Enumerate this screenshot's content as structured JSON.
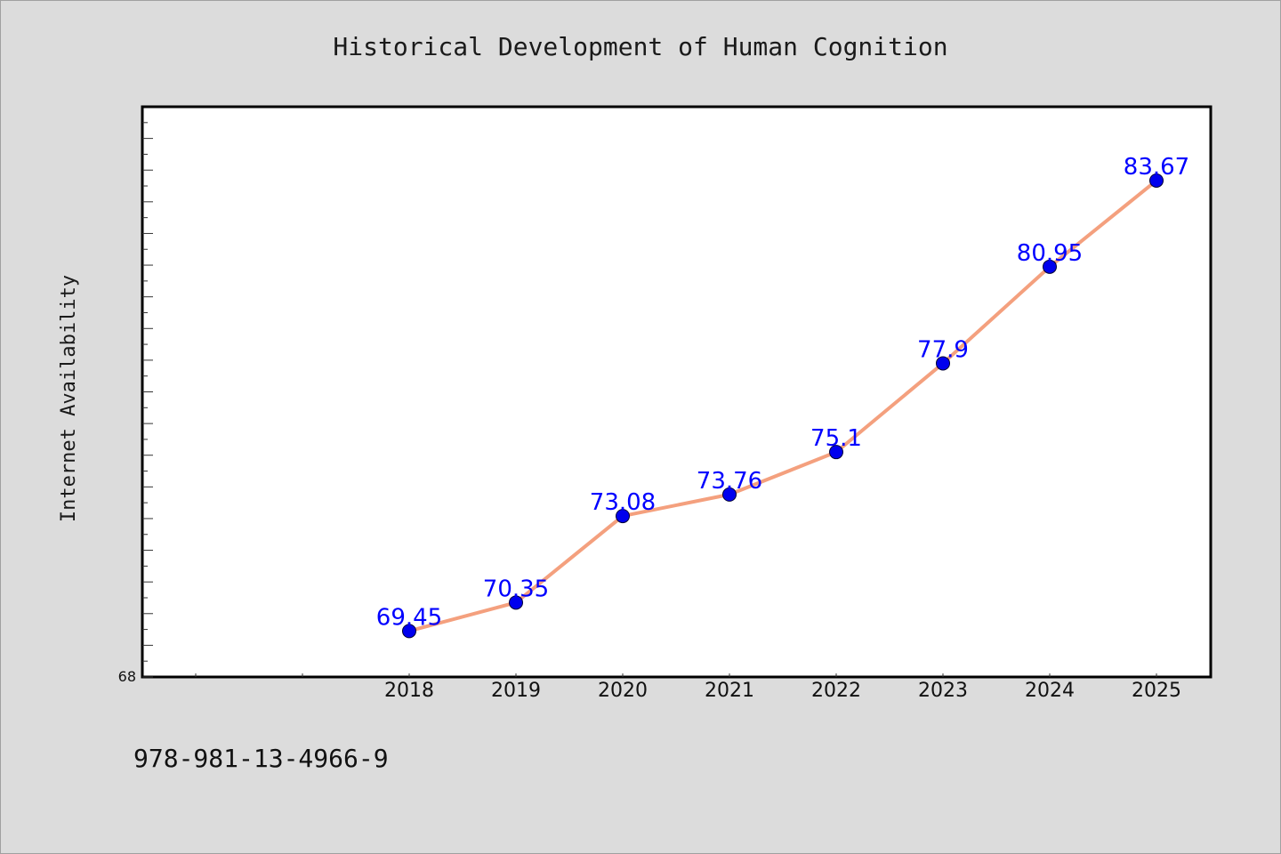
{
  "chart_data": {
    "type": "line",
    "title": "Historical Development of Human Cognition",
    "xlabel": "",
    "ylabel": "Internet Availability",
    "categories": [
      "2018",
      "2019",
      "2020",
      "2021",
      "2022",
      "2023",
      "2024",
      "2025"
    ],
    "series": [
      {
        "values": [
          69.45,
          70.35,
          73.08,
          73.76,
          75.1,
          77.9,
          80.95,
          83.67
        ],
        "data_labels": [
          "69.45",
          "70.35",
          "73.08",
          "73.76",
          "75.1",
          "77.9",
          "80.95",
          "83.67"
        ],
        "line_color": "#f4a07e",
        "marker_color": "#0000ee"
      }
    ],
    "y_min_label": "68",
    "ylim": [
      68,
      86
    ],
    "grid": false,
    "legend": "none"
  },
  "footer": {
    "identifier": "978-981-13-4966-9"
  },
  "colors": {
    "background": "#dcdcdc",
    "plot_background": "#ffffff",
    "data_label": "#0000ff"
  }
}
